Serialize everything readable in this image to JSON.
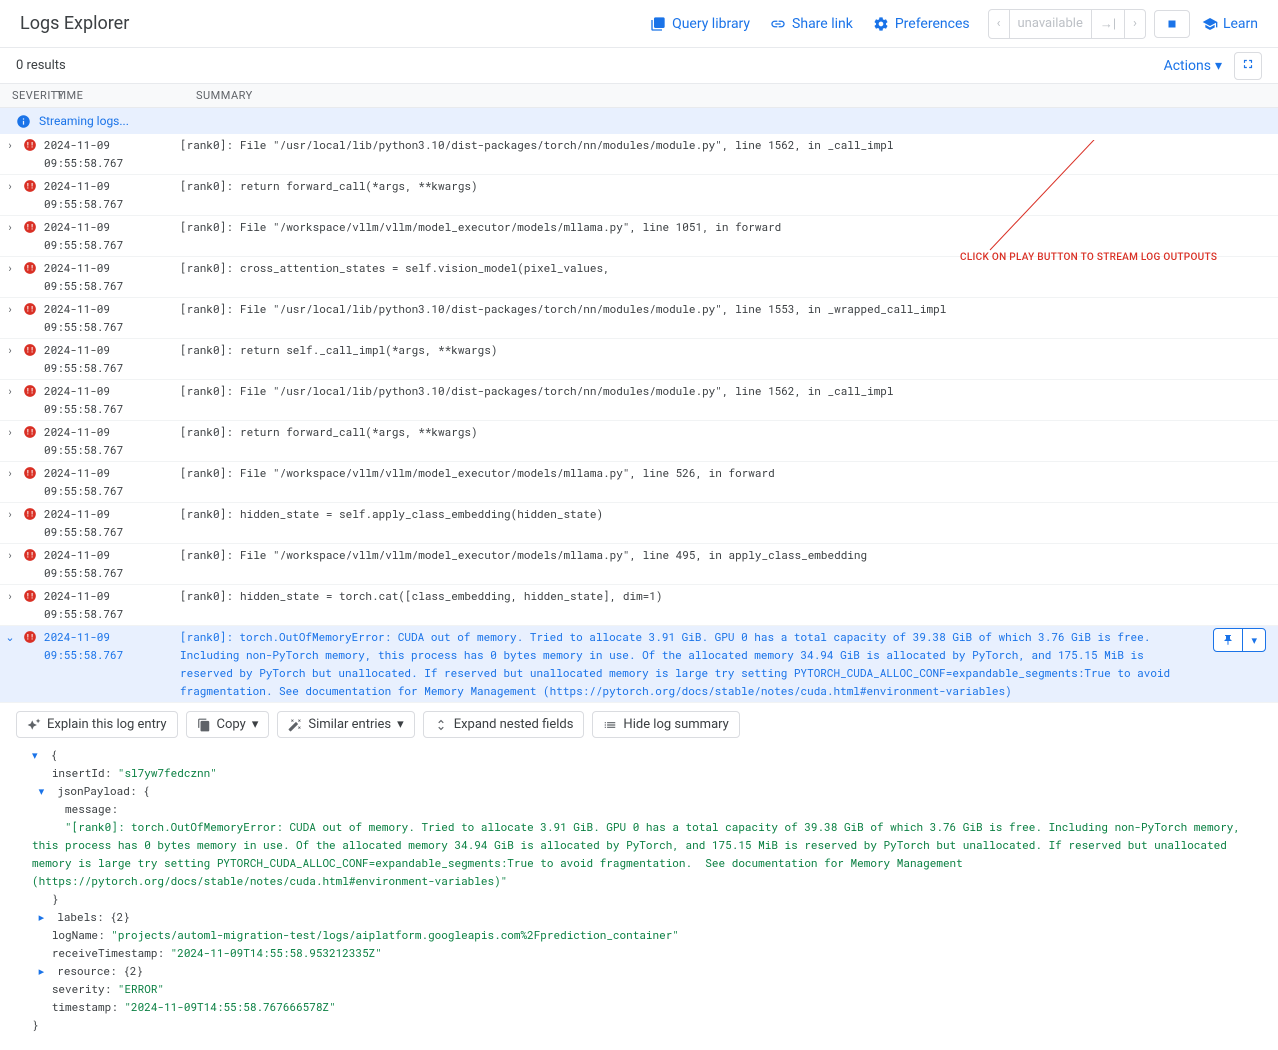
{
  "header": {
    "title": "Logs Explorer",
    "query_library": "Query library",
    "share_link": "Share link",
    "preferences": "Preferences",
    "nav_center": "unavailable",
    "learn": "Learn"
  },
  "results": {
    "count_label": "0 results",
    "actions": "Actions"
  },
  "columns": {
    "severity": "Severity",
    "time": "Time",
    "summary": "Summary"
  },
  "streaming": {
    "label": "Streaming logs..."
  },
  "annotation": {
    "text": "CLICK ON PLAY BUTTON TO STREAM LOG OUTPOUTS",
    "color": "#d93025"
  },
  "log_common": {
    "timestamp": "2024-11-09 09:55:58.767",
    "prefix": "[rank0]:",
    "severity": "ERROR"
  },
  "logs": [
    {
      "msg": "  File \"/usr/local/lib/python3.10/dist-packages/torch/nn/modules/module.py\", line 1562, in _call_impl"
    },
    {
      "msg": "    return forward_call(*args, **kwargs)"
    },
    {
      "msg": "  File \"/workspace/vllm/vllm/model_executor/models/mllama.py\", line 1051, in forward"
    },
    {
      "msg": "    cross_attention_states = self.vision_model(pixel_values,"
    },
    {
      "msg": "  File \"/usr/local/lib/python3.10/dist-packages/torch/nn/modules/module.py\", line 1553, in _wrapped_call_impl"
    },
    {
      "msg": "    return self._call_impl(*args, **kwargs)"
    },
    {
      "msg": "  File \"/usr/local/lib/python3.10/dist-packages/torch/nn/modules/module.py\", line 1562, in _call_impl"
    },
    {
      "msg": "    return forward_call(*args, **kwargs)"
    },
    {
      "msg": "  File \"/workspace/vllm/vllm/model_executor/models/mllama.py\", line 526, in forward"
    },
    {
      "msg": "    hidden_state = self.apply_class_embedding(hidden_state)"
    },
    {
      "msg": "  File \"/workspace/vllm/vllm/model_executor/models/mllama.py\", line 495, in apply_class_embedding"
    },
    {
      "msg": "    hidden_state = torch.cat([class_embedding, hidden_state], dim=1)"
    }
  ],
  "selected_log": {
    "msg": "[rank0]: torch.OutOfMemoryError: CUDA out of memory. Tried to allocate 3.91 GiB. GPU 0 has a total capacity of 39.38 GiB of which 3.76 GiB is free. Including non-PyTorch memory, this process has 0 bytes memory in use. Of the allocated memory 34.94 GiB is allocated by PyTorch, and 175.15 MiB is reserved by PyTorch but unallocated. If reserved but unallocated memory is large try setting PYTORCH_CUDA_ALLOC_CONF=expandable_segments:True to avoid fragmentation.  See documentation for Memory Management  (https://pytorch.org/docs/stable/notes/cuda.html#environment-variables)"
  },
  "detail_toolbar": {
    "explain": "Explain this log entry",
    "copy": "Copy",
    "similar": "Similar entries",
    "expand": "Expand nested fields",
    "hide": "Hide log summary"
  },
  "json": {
    "insertId_key": "insertId:",
    "insertId_val": "\"sl7yw7fedcznn\"",
    "jsonPayload_key": "jsonPayload:",
    "message_key": "message:",
    "message_val": "\"[rank0]: torch.OutOfMemoryError: CUDA out of memory. Tried to allocate 3.91 GiB. GPU 0 has a total capacity of 39.38 GiB of which 3.76 GiB is free. Including non-PyTorch memory, this process has 0 bytes memory in use. Of the allocated memory 34.94 GiB is allocated by PyTorch, and 175.15 MiB is reserved by PyTorch but unallocated. If reserved but unallocated memory is large try setting PYTORCH_CUDA_ALLOC_CONF=expandable_segments:True to avoid fragmentation.  See documentation for Memory Management  (https://pytorch.org/docs/stable/notes/cuda.html#environment-variables)\"",
    "labels_key": "labels:",
    "labels_val": "{2}",
    "logName_key": "logName:",
    "logName_val": "\"projects/automl-migration-test/logs/aiplatform.googleapis.com%2Fprediction_container\"",
    "receiveTimestamp_key": "receiveTimestamp:",
    "receiveTimestamp_val": "\"2024-11-09T14:55:58.953212335Z\"",
    "resource_key": "resource:",
    "resource_val": "{2}",
    "severity_key": "severity:",
    "severity_val": "\"ERROR\"",
    "timestamp_key": "timestamp:",
    "timestamp_val": "\"2024-11-09T14:55:58.767666578Z\""
  },
  "colors": {
    "link": "#1a73e8",
    "error": "#d93025",
    "bg_selected": "#e8f0fe",
    "json_string": "#0b8043",
    "border": "#dadce0"
  }
}
